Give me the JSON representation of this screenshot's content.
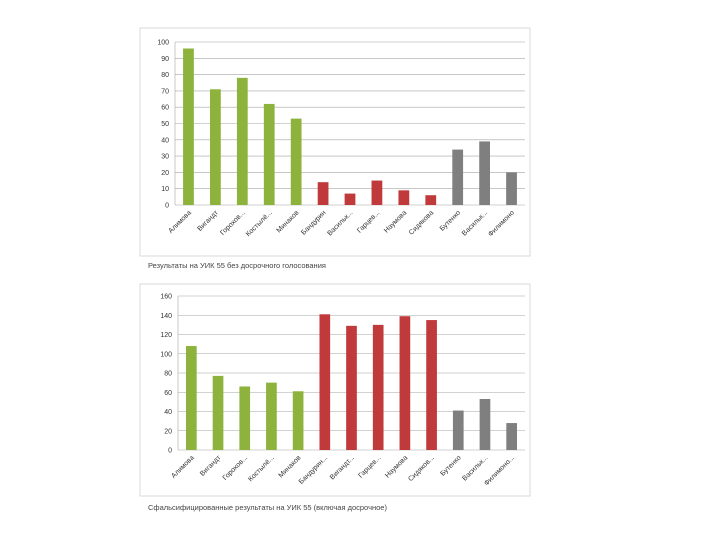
{
  "chart_data": [
    {
      "type": "bar",
      "categories": [
        "Алимова",
        "Вигандт",
        "Горохов...",
        "Костылё...",
        "Минаков",
        "Бандурин",
        "Васильк...",
        "Гарцев...",
        "Наумова",
        "Сидякова",
        "Бутенко",
        "Васильк...",
        "Филимоно"
      ],
      "values": [
        96,
        71,
        78,
        62,
        53,
        14,
        7,
        15,
        9,
        6,
        34,
        39,
        20
      ],
      "colors": [
        "#8db33c",
        "#8db33c",
        "#8db33c",
        "#8db33c",
        "#8db33c",
        "#c0393b",
        "#c0393b",
        "#c0393b",
        "#c0393b",
        "#c0393b",
        "#7f7f7f",
        "#7f7f7f",
        "#7f7f7f"
      ],
      "ylim": [
        0,
        100
      ],
      "yticks": [
        0,
        10,
        20,
        30,
        40,
        50,
        60,
        70,
        80,
        90,
        100
      ],
      "grid": true,
      "caption": "Результаты на УИК 55 без досрочного голосования"
    },
    {
      "type": "bar",
      "categories": [
        "Алимова",
        "Вигандт",
        "Горохов...",
        "Костылё...",
        "Минаков",
        "Бандурин...",
        "Вигандт...",
        "Гарцев...",
        "Наумова",
        "Сидяков...",
        "Бутенко",
        "Васильк...",
        "Филимоно..."
      ],
      "values": [
        108,
        77,
        66,
        70,
        61,
        141,
        129,
        130,
        139,
        135,
        41,
        53,
        28
      ],
      "colors": [
        "#8db33c",
        "#8db33c",
        "#8db33c",
        "#8db33c",
        "#8db33c",
        "#c0393b",
        "#c0393b",
        "#c0393b",
        "#c0393b",
        "#c0393b",
        "#7f7f7f",
        "#7f7f7f",
        "#7f7f7f"
      ],
      "ylim": [
        0,
        160
      ],
      "yticks": [
        0,
        20,
        40,
        60,
        80,
        100,
        120,
        140,
        160
      ],
      "grid": true,
      "caption": "Сфальсифицированные результаты на УИК 55 (включая досрочное)"
    }
  ]
}
